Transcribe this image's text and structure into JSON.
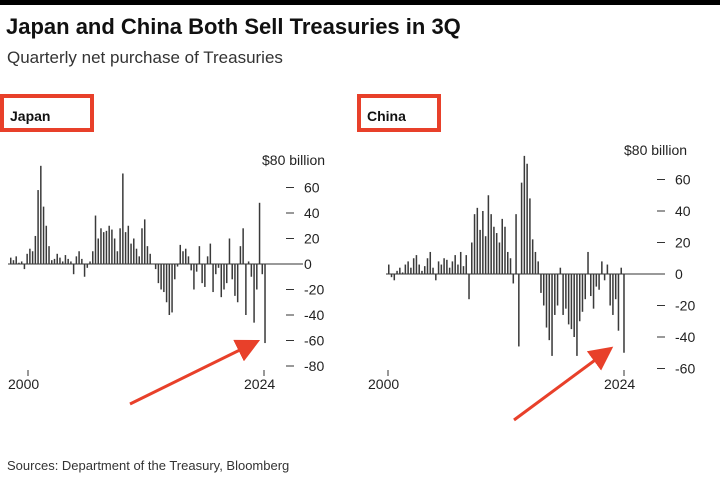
{
  "title": "Japan and China Both Sell Treasuries in 3Q",
  "subtitle": "Quarterly net purchase of Treasuries",
  "source": "Sources: Department of the Treasury, Bloomberg",
  "colors": {
    "bar": "#3a3a3a",
    "highlight": "#e8402a",
    "zero": "#333333"
  },
  "chart_data": [
    {
      "type": "bar",
      "title": "Japan",
      "unit_label": "$80 billion",
      "ylim": [
        -80,
        80
      ],
      "yticks": [
        "60",
        "40",
        "20",
        "0",
        "-20",
        "-40",
        "-60",
        "-80"
      ],
      "ytick_values": [
        60,
        40,
        20,
        0,
        -20,
        -40,
        -60,
        -80
      ],
      "xtick_labels": [
        "2000",
        "2024"
      ],
      "x_start_year": 2000,
      "x_end_year": 2024,
      "annotation": "arrow pointing to latest quarter",
      "values": [
        5,
        3,
        6,
        1,
        2,
        -4,
        8,
        12,
        10,
        22,
        58,
        77,
        45,
        30,
        14,
        3,
        4,
        8,
        5,
        2,
        7,
        4,
        2,
        -8,
        6,
        10,
        4,
        -10,
        -3,
        2,
        10,
        38,
        20,
        28,
        25,
        26,
        30,
        27,
        20,
        10,
        28,
        71,
        25,
        30,
        16,
        20,
        12,
        6,
        28,
        35,
        14,
        8,
        0,
        -4,
        -15,
        -20,
        -22,
        -30,
        -40,
        -38,
        -12,
        -2,
        15,
        10,
        12,
        6,
        -5,
        -20,
        -6,
        14,
        -15,
        -18,
        6,
        16,
        -22,
        -8,
        -3,
        -26,
        -20,
        -15,
        20,
        -12,
        -25,
        -30,
        14,
        28,
        -40,
        2,
        -10,
        -46,
        -20,
        48,
        -8,
        -62
      ]
    },
    {
      "type": "bar",
      "title": "China",
      "unit_label": "$80 billion",
      "ylim": [
        -60,
        80
      ],
      "yticks": [
        "60",
        "40",
        "20",
        "0",
        "-20",
        "-40",
        "-60"
      ],
      "ytick_values": [
        60,
        40,
        20,
        0,
        -20,
        -40,
        -60
      ],
      "xtick_labels": [
        "2000",
        "2024"
      ],
      "x_start_year": 2000,
      "x_end_year": 2024,
      "annotation": "arrow pointing to latest quarter",
      "values": [
        6,
        -2,
        -4,
        2,
        4,
        1,
        6,
        8,
        4,
        10,
        12,
        6,
        2,
        5,
        10,
        14,
        4,
        -4,
        8,
        6,
        10,
        9,
        4,
        8,
        12,
        6,
        14,
        5,
        12,
        -16,
        20,
        38,
        42,
        28,
        40,
        24,
        50,
        38,
        30,
        26,
        20,
        35,
        30,
        14,
        10,
        -6,
        38,
        -46,
        58,
        75,
        70,
        48,
        22,
        14,
        8,
        -12,
        -20,
        -34,
        -42,
        -52,
        -26,
        -20,
        4,
        -26,
        -22,
        -32,
        -35,
        -40,
        -52,
        -30,
        -24,
        -16,
        14,
        -14,
        -22,
        -8,
        -10,
        8,
        -4,
        6,
        -20,
        -26,
        -16,
        -36,
        4,
        -50
      ]
    }
  ]
}
